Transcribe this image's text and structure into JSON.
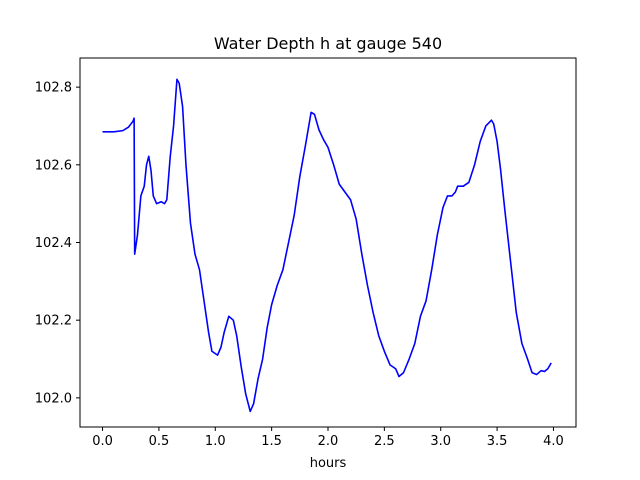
{
  "chart_data": {
    "type": "line",
    "title": "Water Depth h at gauge 540",
    "xlabel": "hours",
    "ylabel": "",
    "xlim": [
      -0.2,
      4.2
    ],
    "ylim": [
      101.925,
      102.875
    ],
    "xticks": [
      0.0,
      0.5,
      1.0,
      1.5,
      2.0,
      2.5,
      3.0,
      3.5,
      4.0
    ],
    "xtick_labels": [
      "0.0",
      "0.5",
      "1.0",
      "1.5",
      "2.0",
      "2.5",
      "3.0",
      "3.5",
      "4.0"
    ],
    "yticks": [
      102.0,
      102.2,
      102.4,
      102.6,
      102.8
    ],
    "ytick_labels": [
      "102.0",
      "102.2",
      "102.4",
      "102.6",
      "102.8"
    ],
    "grid": false,
    "series": [
      {
        "color": "#0000ff",
        "points": [
          [
            0.0,
            102.685
          ],
          [
            0.1,
            102.685
          ],
          [
            0.18,
            102.688
          ],
          [
            0.23,
            102.697
          ],
          [
            0.27,
            102.712
          ],
          [
            0.28,
            102.72
          ],
          [
            0.285,
            102.37
          ],
          [
            0.31,
            102.42
          ],
          [
            0.34,
            102.52
          ],
          [
            0.37,
            102.545
          ],
          [
            0.39,
            102.6
          ],
          [
            0.41,
            102.622
          ],
          [
            0.43,
            102.585
          ],
          [
            0.45,
            102.52
          ],
          [
            0.48,
            102.5
          ],
          [
            0.52,
            102.505
          ],
          [
            0.55,
            102.5
          ],
          [
            0.57,
            102.51
          ],
          [
            0.6,
            102.62
          ],
          [
            0.63,
            102.7
          ],
          [
            0.66,
            102.82
          ],
          [
            0.68,
            102.81
          ],
          [
            0.71,
            102.75
          ],
          [
            0.74,
            102.6
          ],
          [
            0.78,
            102.45
          ],
          [
            0.82,
            102.37
          ],
          [
            0.86,
            102.33
          ],
          [
            0.9,
            102.25
          ],
          [
            0.94,
            102.17
          ],
          [
            0.97,
            102.12
          ],
          [
            1.02,
            102.11
          ],
          [
            1.05,
            102.13
          ],
          [
            1.08,
            102.17
          ],
          [
            1.12,
            102.21
          ],
          [
            1.16,
            102.2
          ],
          [
            1.19,
            102.16
          ],
          [
            1.23,
            102.08
          ],
          [
            1.27,
            102.01
          ],
          [
            1.31,
            101.965
          ],
          [
            1.34,
            101.985
          ],
          [
            1.38,
            102.05
          ],
          [
            1.42,
            102.1
          ],
          [
            1.46,
            102.18
          ],
          [
            1.5,
            102.24
          ],
          [
            1.55,
            102.29
          ],
          [
            1.6,
            102.33
          ],
          [
            1.65,
            102.4
          ],
          [
            1.7,
            102.47
          ],
          [
            1.75,
            102.57
          ],
          [
            1.8,
            102.65
          ],
          [
            1.85,
            102.735
          ],
          [
            1.88,
            102.73
          ],
          [
            1.92,
            102.69
          ],
          [
            1.96,
            102.665
          ],
          [
            2.0,
            102.645
          ],
          [
            2.05,
            102.6
          ],
          [
            2.1,
            102.55
          ],
          [
            2.15,
            102.53
          ],
          [
            2.2,
            102.51
          ],
          [
            2.25,
            102.46
          ],
          [
            2.3,
            102.37
          ],
          [
            2.35,
            102.29
          ],
          [
            2.4,
            102.22
          ],
          [
            2.45,
            102.16
          ],
          [
            2.5,
            102.12
          ],
          [
            2.55,
            102.085
          ],
          [
            2.6,
            102.075
          ],
          [
            2.63,
            102.055
          ],
          [
            2.67,
            102.065
          ],
          [
            2.72,
            102.1
          ],
          [
            2.77,
            102.14
          ],
          [
            2.82,
            102.21
          ],
          [
            2.87,
            102.25
          ],
          [
            2.92,
            102.33
          ],
          [
            2.97,
            102.42
          ],
          [
            3.02,
            102.49
          ],
          [
            3.06,
            102.52
          ],
          [
            3.1,
            102.52
          ],
          [
            3.13,
            102.53
          ],
          [
            3.15,
            102.545
          ],
          [
            3.2,
            102.545
          ],
          [
            3.25,
            102.555
          ],
          [
            3.3,
            102.6
          ],
          [
            3.35,
            102.66
          ],
          [
            3.4,
            102.7
          ],
          [
            3.45,
            102.715
          ],
          [
            3.47,
            102.705
          ],
          [
            3.5,
            102.66
          ],
          [
            3.53,
            102.59
          ],
          [
            3.57,
            102.48
          ],
          [
            3.62,
            102.35
          ],
          [
            3.67,
            102.22
          ],
          [
            3.72,
            102.14
          ],
          [
            3.77,
            102.1
          ],
          [
            3.81,
            102.065
          ],
          [
            3.85,
            102.06
          ],
          [
            3.89,
            102.07
          ],
          [
            3.92,
            102.068
          ],
          [
            3.95,
            102.075
          ],
          [
            3.98,
            102.09
          ]
        ]
      }
    ]
  }
}
